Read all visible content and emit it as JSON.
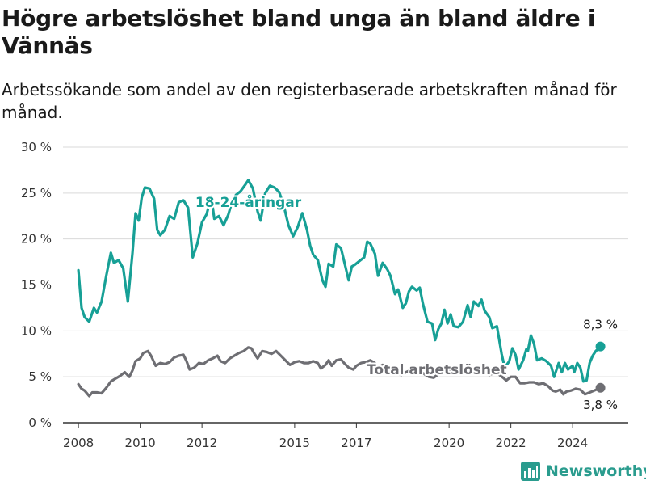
{
  "title": "Högre arbetslöshet bland unga än bland äldre i Vännäs",
  "subtitle": "Arbetssökande som andel av den registerbaserade arbetskraften månad för månad.",
  "brand": "Newsworthy",
  "colors": {
    "youth": "#17a096",
    "total": "#6e6e73",
    "grid": "#d9d9d9",
    "axis": "#333333",
    "brand": "#2a9c8e"
  },
  "chart_data": {
    "type": "line",
    "title": "Högre arbetslöshet bland unga än bland äldre i Vännäs",
    "subtitle": "Arbetssökande som andel av den registerbaserade arbetskraften månad för månad.",
    "xlabel": "",
    "ylabel": "",
    "xlim": [
      2007.5,
      2025.8
    ],
    "ylim": [
      0,
      30
    ],
    "y_ticks": [
      0,
      5,
      10,
      15,
      20,
      25,
      30
    ],
    "y_tick_labels": [
      "0 %",
      "5 %",
      "10 %",
      "15 %",
      "20 %",
      "25 %",
      "30 %"
    ],
    "x_ticks": [
      2008,
      2010,
      2012,
      2015,
      2017,
      2020,
      2022,
      2024
    ],
    "x_tick_labels": [
      "2008",
      "2010",
      "2012",
      "2015",
      "2017",
      "2020",
      "2022",
      "2024"
    ],
    "grid": "horizontal",
    "series": [
      {
        "name": "18-24-åringar",
        "color": "#17a096",
        "end_label": "8,3 %",
        "points": [
          [
            2008.0,
            16.6
          ],
          [
            2008.1,
            12.5
          ],
          [
            2008.2,
            11.5
          ],
          [
            2008.35,
            11.0
          ],
          [
            2008.5,
            12.5
          ],
          [
            2008.6,
            12.0
          ],
          [
            2008.75,
            13.2
          ],
          [
            2008.9,
            16.0
          ],
          [
            2009.05,
            18.5
          ],
          [
            2009.15,
            17.4
          ],
          [
            2009.3,
            17.7
          ],
          [
            2009.45,
            16.8
          ],
          [
            2009.6,
            13.2
          ],
          [
            2009.75,
            18.5
          ],
          [
            2009.85,
            22.8
          ],
          [
            2009.95,
            22.0
          ],
          [
            2010.05,
            24.5
          ],
          [
            2010.15,
            25.6
          ],
          [
            2010.3,
            25.5
          ],
          [
            2010.45,
            24.4
          ],
          [
            2010.55,
            21.0
          ],
          [
            2010.65,
            20.4
          ],
          [
            2010.8,
            21.0
          ],
          [
            2010.95,
            22.5
          ],
          [
            2011.1,
            22.2
          ],
          [
            2011.25,
            24.0
          ],
          [
            2011.4,
            24.2
          ],
          [
            2011.55,
            23.4
          ],
          [
            2011.7,
            18.0
          ],
          [
            2011.85,
            19.5
          ],
          [
            2012.0,
            21.8
          ],
          [
            2012.15,
            22.7
          ],
          [
            2012.3,
            24.6
          ],
          [
            2012.4,
            22.2
          ],
          [
            2012.55,
            22.5
          ],
          [
            2012.7,
            21.5
          ],
          [
            2012.85,
            22.6
          ],
          [
            2012.95,
            23.8
          ],
          [
            2013.1,
            24.8
          ],
          [
            2013.25,
            25.2
          ],
          [
            2013.4,
            25.9
          ],
          [
            2013.5,
            26.4
          ],
          [
            2013.65,
            25.5
          ],
          [
            2013.8,
            23.0
          ],
          [
            2013.9,
            22.0
          ],
          [
            2014.05,
            25.0
          ],
          [
            2014.2,
            25.8
          ],
          [
            2014.35,
            25.6
          ],
          [
            2014.5,
            25.1
          ],
          [
            2014.65,
            23.6
          ],
          [
            2014.8,
            21.5
          ],
          [
            2014.95,
            20.3
          ],
          [
            2015.1,
            21.3
          ],
          [
            2015.25,
            22.8
          ],
          [
            2015.4,
            21.0
          ],
          [
            2015.5,
            19.3
          ],
          [
            2015.6,
            18.3
          ],
          [
            2015.75,
            17.7
          ],
          [
            2015.9,
            15.5
          ],
          [
            2016.0,
            14.8
          ],
          [
            2016.1,
            17.3
          ],
          [
            2016.25,
            17.0
          ],
          [
            2016.35,
            19.4
          ],
          [
            2016.5,
            19.0
          ],
          [
            2016.6,
            17.6
          ],
          [
            2016.75,
            15.5
          ],
          [
            2016.85,
            17.0
          ],
          [
            2016.95,
            17.2
          ],
          [
            2017.1,
            17.6
          ],
          [
            2017.25,
            18.0
          ],
          [
            2017.35,
            19.7
          ],
          [
            2017.45,
            19.5
          ],
          [
            2017.6,
            18.4
          ],
          [
            2017.7,
            16.0
          ],
          [
            2017.85,
            17.4
          ],
          [
            2018.0,
            16.7
          ],
          [
            2018.1,
            16.0
          ],
          [
            2018.25,
            14.0
          ],
          [
            2018.35,
            14.5
          ],
          [
            2018.5,
            12.5
          ],
          [
            2018.6,
            13.0
          ],
          [
            2018.7,
            14.3
          ],
          [
            2018.8,
            14.8
          ],
          [
            2018.95,
            14.4
          ],
          [
            2019.05,
            14.7
          ],
          [
            2019.15,
            13.0
          ],
          [
            2019.3,
            11.0
          ],
          [
            2019.45,
            10.8
          ],
          [
            2019.55,
            9.0
          ],
          [
            2019.65,
            10.2
          ],
          [
            2019.75,
            10.8
          ],
          [
            2019.85,
            12.3
          ],
          [
            2019.95,
            10.8
          ],
          [
            2020.05,
            11.8
          ],
          [
            2020.15,
            10.5
          ],
          [
            2020.3,
            10.4
          ],
          [
            2020.45,
            11.0
          ],
          [
            2020.6,
            12.8
          ],
          [
            2020.7,
            11.5
          ],
          [
            2020.8,
            13.2
          ],
          [
            2020.95,
            12.7
          ],
          [
            2021.05,
            13.4
          ],
          [
            2021.15,
            12.2
          ],
          [
            2021.3,
            11.5
          ],
          [
            2021.4,
            10.3
          ],
          [
            2021.55,
            10.5
          ],
          [
            2021.7,
            7.5
          ],
          [
            2021.8,
            6.0
          ],
          [
            2021.95,
            6.7
          ],
          [
            2022.05,
            8.1
          ],
          [
            2022.15,
            7.4
          ],
          [
            2022.25,
            5.8
          ],
          [
            2022.4,
            6.8
          ],
          [
            2022.5,
            8.0
          ],
          [
            2022.55,
            7.8
          ],
          [
            2022.65,
            9.5
          ],
          [
            2022.75,
            8.6
          ],
          [
            2022.85,
            6.8
          ],
          [
            2023.0,
            7.0
          ],
          [
            2023.15,
            6.7
          ],
          [
            2023.3,
            6.2
          ],
          [
            2023.4,
            5.0
          ],
          [
            2023.55,
            6.5
          ],
          [
            2023.65,
            5.5
          ],
          [
            2023.75,
            6.5
          ],
          [
            2023.85,
            5.8
          ],
          [
            2024.0,
            6.2
          ],
          [
            2024.05,
            5.5
          ],
          [
            2024.15,
            6.5
          ],
          [
            2024.25,
            6.0
          ],
          [
            2024.35,
            4.5
          ],
          [
            2024.45,
            4.6
          ],
          [
            2024.55,
            6.5
          ],
          [
            2024.65,
            7.3
          ],
          [
            2024.75,
            7.8
          ],
          [
            2024.9,
            8.3
          ]
        ]
      },
      {
        "name": "Total arbetslöshet",
        "color": "#6e6e73",
        "end_label": "3,8 %",
        "points": [
          [
            2008.0,
            4.2
          ],
          [
            2008.1,
            3.7
          ],
          [
            2008.2,
            3.5
          ],
          [
            2008.35,
            2.9
          ],
          [
            2008.45,
            3.3
          ],
          [
            2008.6,
            3.3
          ],
          [
            2008.75,
            3.2
          ],
          [
            2008.9,
            3.8
          ],
          [
            2009.05,
            4.5
          ],
          [
            2009.2,
            4.8
          ],
          [
            2009.35,
            5.1
          ],
          [
            2009.5,
            5.5
          ],
          [
            2009.65,
            5.0
          ],
          [
            2009.75,
            5.7
          ],
          [
            2009.85,
            6.7
          ],
          [
            2010.0,
            7.0
          ],
          [
            2010.1,
            7.6
          ],
          [
            2010.25,
            7.8
          ],
          [
            2010.35,
            7.3
          ],
          [
            2010.5,
            6.2
          ],
          [
            2010.65,
            6.5
          ],
          [
            2010.8,
            6.4
          ],
          [
            2010.95,
            6.6
          ],
          [
            2011.1,
            7.1
          ],
          [
            2011.25,
            7.3
          ],
          [
            2011.4,
            7.4
          ],
          [
            2011.5,
            6.7
          ],
          [
            2011.6,
            5.8
          ],
          [
            2011.75,
            6.0
          ],
          [
            2011.9,
            6.5
          ],
          [
            2012.05,
            6.4
          ],
          [
            2012.2,
            6.8
          ],
          [
            2012.35,
            7.0
          ],
          [
            2012.5,
            7.3
          ],
          [
            2012.6,
            6.7
          ],
          [
            2012.75,
            6.5
          ],
          [
            2012.9,
            7.0
          ],
          [
            2013.05,
            7.3
          ],
          [
            2013.2,
            7.6
          ],
          [
            2013.35,
            7.8
          ],
          [
            2013.5,
            8.2
          ],
          [
            2013.6,
            8.1
          ],
          [
            2013.7,
            7.5
          ],
          [
            2013.8,
            7.0
          ],
          [
            2013.95,
            7.8
          ],
          [
            2014.1,
            7.7
          ],
          [
            2014.25,
            7.5
          ],
          [
            2014.4,
            7.8
          ],
          [
            2014.55,
            7.3
          ],
          [
            2014.7,
            6.8
          ],
          [
            2014.85,
            6.3
          ],
          [
            2015.0,
            6.6
          ],
          [
            2015.15,
            6.7
          ],
          [
            2015.3,
            6.5
          ],
          [
            2015.45,
            6.5
          ],
          [
            2015.6,
            6.7
          ],
          [
            2015.75,
            6.5
          ],
          [
            2015.85,
            5.9
          ],
          [
            2016.0,
            6.3
          ],
          [
            2016.1,
            6.8
          ],
          [
            2016.2,
            6.2
          ],
          [
            2016.35,
            6.8
          ],
          [
            2016.5,
            6.9
          ],
          [
            2016.6,
            6.5
          ],
          [
            2016.75,
            6.0
          ],
          [
            2016.9,
            5.8
          ],
          [
            2017.0,
            6.2
          ],
          [
            2017.15,
            6.5
          ],
          [
            2017.3,
            6.6
          ],
          [
            2017.45,
            6.8
          ],
          [
            2017.6,
            6.5
          ],
          [
            2017.7,
            6.0
          ],
          [
            2017.85,
            6.3
          ],
          [
            2018.0,
            6.0
          ],
          [
            2018.15,
            5.8
          ],
          [
            2018.3,
            5.4
          ],
          [
            2018.45,
            5.2
          ],
          [
            2018.6,
            5.5
          ],
          [
            2018.75,
            5.7
          ],
          [
            2018.9,
            5.6
          ],
          [
            2019.05,
            5.6
          ],
          [
            2019.2,
            5.3
          ],
          [
            2019.35,
            5.0
          ],
          [
            2019.5,
            4.9
          ],
          [
            2019.65,
            5.3
          ],
          [
            2019.8,
            5.5
          ],
          [
            2019.95,
            5.6
          ],
          [
            2020.1,
            5.7
          ],
          [
            2020.25,
            5.5
          ],
          [
            2020.4,
            5.8
          ],
          [
            2020.55,
            6.0
          ],
          [
            2020.7,
            5.8
          ],
          [
            2020.85,
            6.0
          ],
          [
            2021.0,
            6.0
          ],
          [
            2021.15,
            5.5
          ],
          [
            2021.3,
            5.2
          ],
          [
            2021.45,
            5.4
          ],
          [
            2021.6,
            5.3
          ],
          [
            2021.75,
            4.9
          ],
          [
            2021.85,
            4.6
          ],
          [
            2022.0,
            5.0
          ],
          [
            2022.15,
            5.0
          ],
          [
            2022.3,
            4.3
          ],
          [
            2022.45,
            4.3
          ],
          [
            2022.6,
            4.4
          ],
          [
            2022.75,
            4.4
          ],
          [
            2022.9,
            4.2
          ],
          [
            2023.05,
            4.3
          ],
          [
            2023.2,
            4.0
          ],
          [
            2023.35,
            3.5
          ],
          [
            2023.45,
            3.4
          ],
          [
            2023.6,
            3.6
          ],
          [
            2023.7,
            3.1
          ],
          [
            2023.8,
            3.4
          ],
          [
            2023.95,
            3.5
          ],
          [
            2024.1,
            3.7
          ],
          [
            2024.25,
            3.6
          ],
          [
            2024.4,
            3.1
          ],
          [
            2024.55,
            3.3
          ],
          [
            2024.7,
            3.5
          ],
          [
            2024.9,
            3.8
          ]
        ]
      }
    ]
  }
}
